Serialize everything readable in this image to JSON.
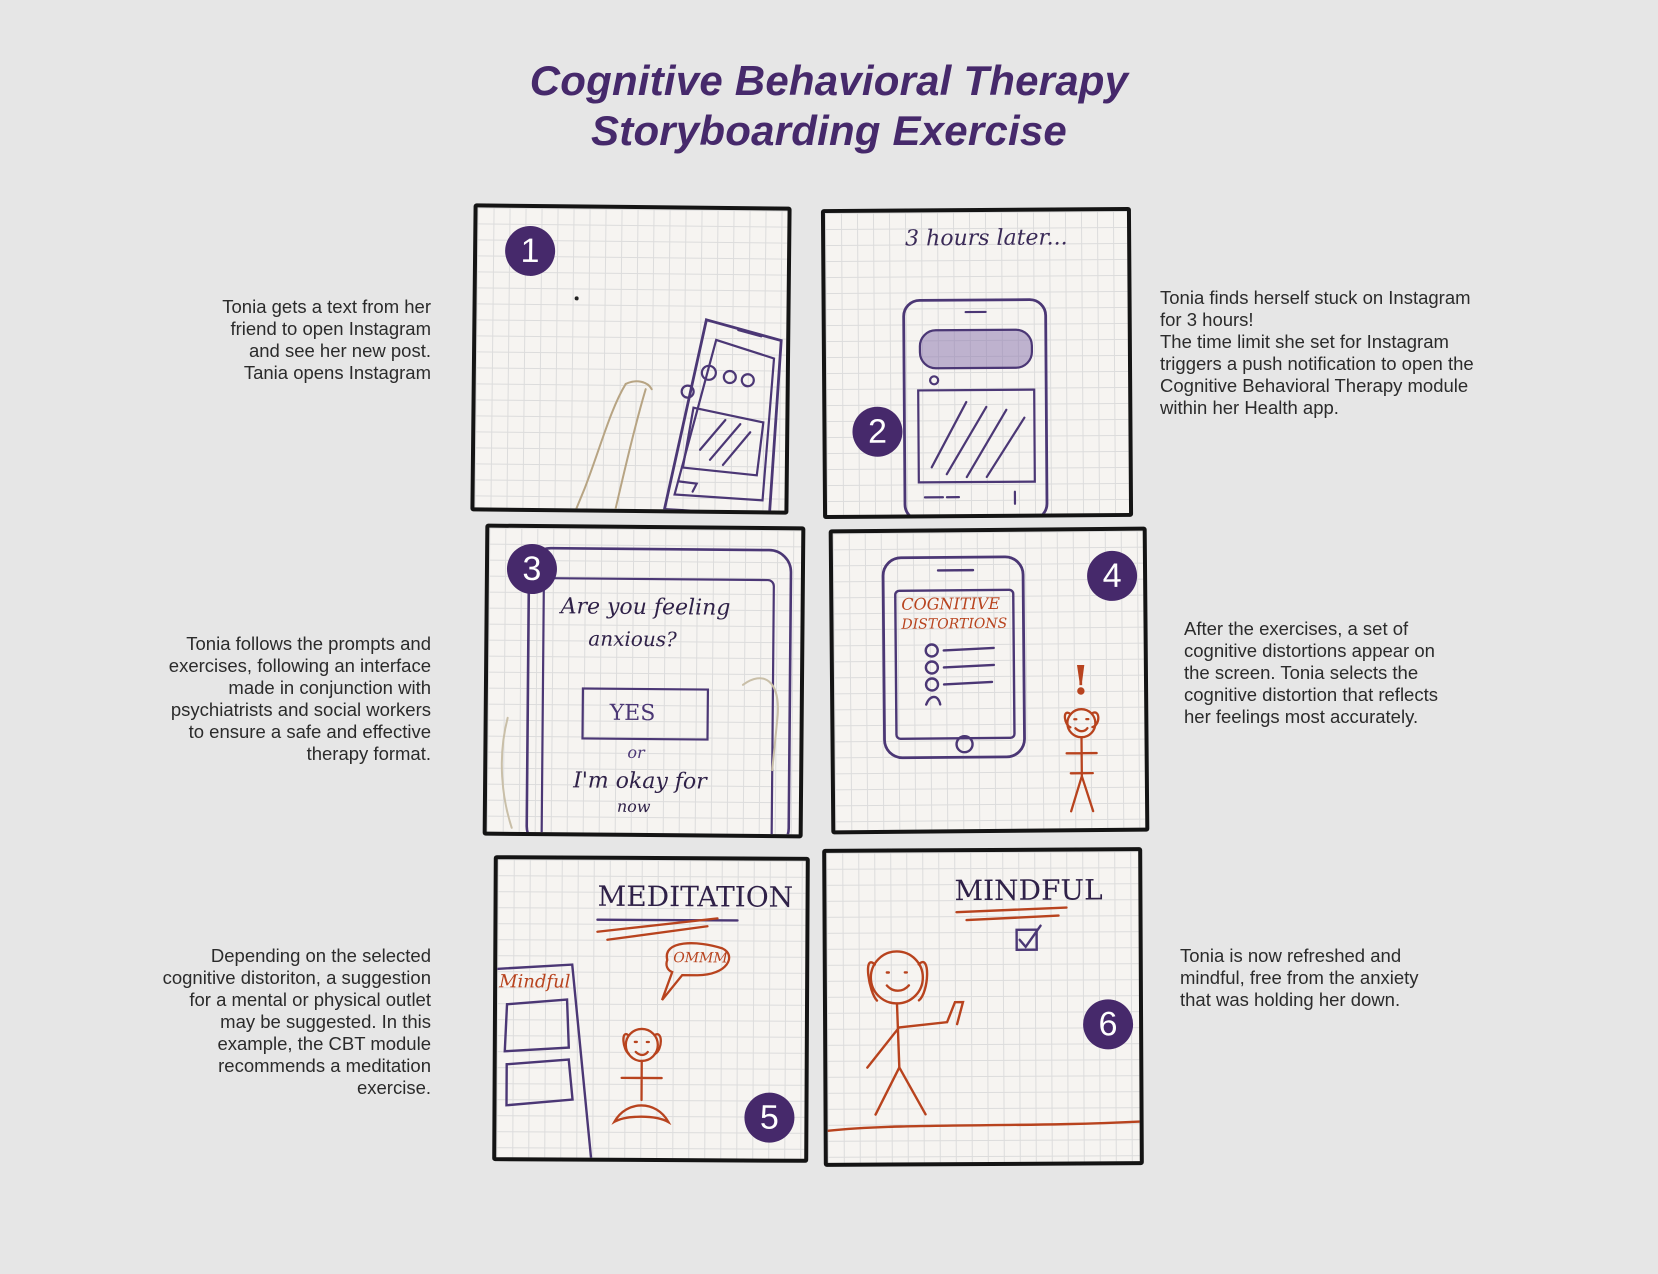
{
  "title": {
    "line1": "Cognitive Behavioral Therapy",
    "line2": "Storyboarding Exercise"
  },
  "colors": {
    "accent": "#46296b",
    "background": "#e6e6e6",
    "sketch_purple": "#4b3775",
    "sketch_orange": "#b8431e"
  },
  "panels": [
    {
      "number": "1",
      "caption": "Tonia gets a text from her\nfriend to open Instagram\nand see her new post.\nTania opens Instagram",
      "sketch_text": []
    },
    {
      "number": "2",
      "caption": "Tonia finds herself stuck on Instagram\nfor 3 hours!\nThe time limit she set for Instagram\ntriggers a push notification to open the\nCognitive Behavioral Therapy module\nwithin her Health app.",
      "sketch_text": [
        "3 hours later..."
      ]
    },
    {
      "number": "3",
      "caption": "Tonia follows the prompts and\nexercises, following an interface\nmade in conjunction with\npsychiatrists and social workers\nto ensure a safe and effective\ntherapy format.",
      "sketch_text": [
        "Are you feeling",
        "anxious?",
        "YES",
        "or",
        "I'm okay for",
        "now"
      ]
    },
    {
      "number": "4",
      "caption": "After the exercises, a set of\ncognitive distortions appear on\nthe screen. Tonia selects the\ncognitive distortion that reflects\nher feelings most accurately.",
      "sketch_text": [
        "COGNITIVE",
        "DISTORTIONS",
        "!"
      ]
    },
    {
      "number": "5",
      "caption": "Depending on the selected\ncognitive distoriton, a suggestion\nfor a mental or physical outlet\nmay be suggested. In this\nexample, the CBT module\nrecommends a meditation\nexercise.",
      "sketch_text": [
        "MEDITATION",
        "OMMM",
        "Mindful"
      ]
    },
    {
      "number": "6",
      "caption": "Tonia is now refreshed and\nmindful, free from the anxiety\nthat was holding her down.",
      "sketch_text": [
        "MINDFUL"
      ]
    }
  ]
}
